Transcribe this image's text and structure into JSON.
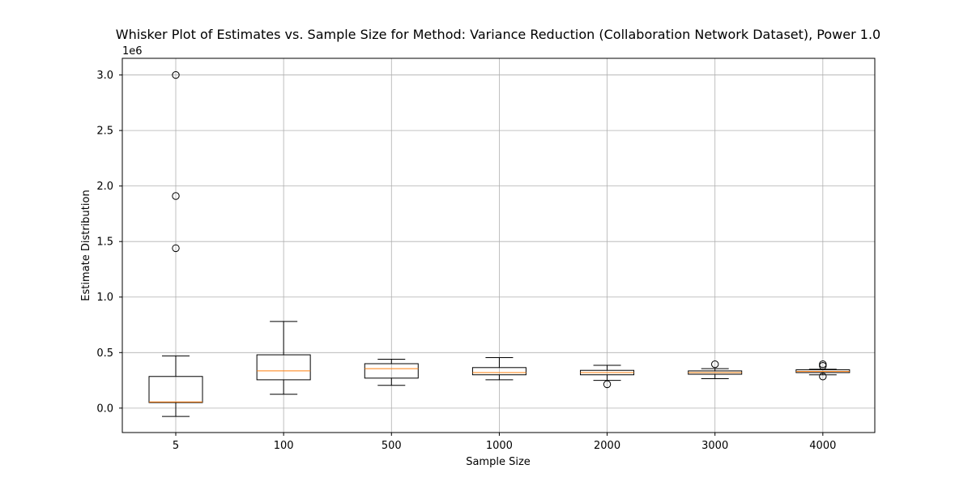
{
  "chart_data": {
    "type": "box",
    "title": "Whisker Plot of Estimates vs. Sample Size for Method: Variance Reduction (Collaboration Network Dataset), Power 1.0",
    "xlabel": "Sample Size",
    "ylabel": "Estimate Distribution",
    "y_offset_label": "1e6",
    "y_scale": 1000000,
    "ylim": [
      -220000,
      3150000
    ],
    "yticks": [
      0,
      500000,
      1000000,
      1500000,
      2000000,
      2500000,
      3000000
    ],
    "ytick_labels": [
      "0.0",
      "0.5",
      "1.0",
      "1.5",
      "2.0",
      "2.5",
      "3.0"
    ],
    "grid": true,
    "categories": [
      "5",
      "100",
      "500",
      "1000",
      "2000",
      "3000",
      "4000"
    ],
    "boxes": [
      {
        "category": "5",
        "whisker_low": -75000,
        "q1": 50000,
        "median": 55000,
        "q3": 285000,
        "whisker_high": 470000,
        "outliers": [
          3000000,
          1910000,
          1440000
        ]
      },
      {
        "category": "100",
        "whisker_low": 125000,
        "q1": 255000,
        "median": 335000,
        "q3": 480000,
        "whisker_high": 780000,
        "outliers": []
      },
      {
        "category": "500",
        "whisker_low": 205000,
        "q1": 270000,
        "median": 355000,
        "q3": 400000,
        "whisker_high": 440000,
        "outliers": []
      },
      {
        "category": "1000",
        "whisker_low": 255000,
        "q1": 300000,
        "median": 320000,
        "q3": 365000,
        "whisker_high": 455000,
        "outliers": []
      },
      {
        "category": "2000",
        "whisker_low": 250000,
        "q1": 300000,
        "median": 320000,
        "q3": 340000,
        "whisker_high": 385000,
        "outliers": [
          215000
        ]
      },
      {
        "category": "3000",
        "whisker_low": 265000,
        "q1": 305000,
        "median": 320000,
        "q3": 335000,
        "whisker_high": 355000,
        "outliers": [
          395000
        ]
      },
      {
        "category": "4000",
        "whisker_low": 300000,
        "q1": 320000,
        "median": 330000,
        "q3": 345000,
        "whisker_high": 350000,
        "outliers": [
          395000,
          380000,
          285000
        ]
      }
    ],
    "colors": {
      "box": "#000000",
      "median": "#ff7f0e",
      "grid": "#b0b0b0"
    }
  }
}
